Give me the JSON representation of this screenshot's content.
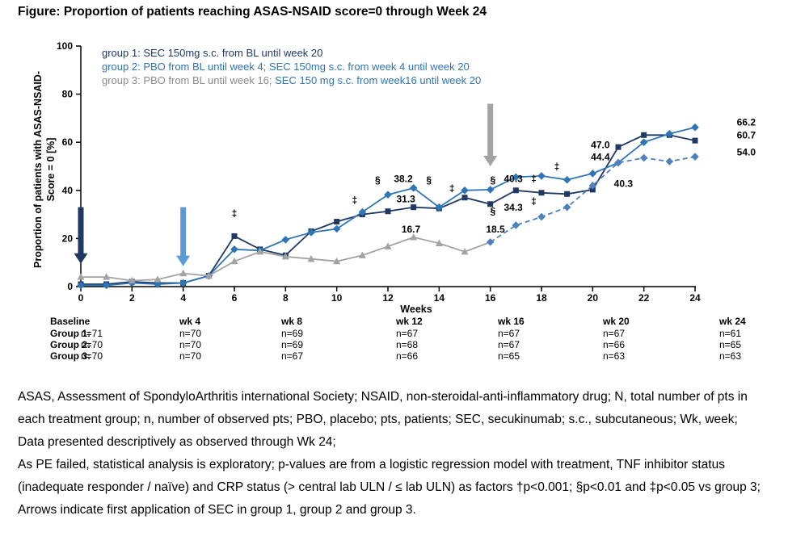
{
  "title": "Figure: Proportion of patients reaching ASAS-NSAID score=0 through Week 24",
  "palette": {
    "navy": "#1f3864",
    "blue": "#2e75b6",
    "lightblue": "#4f81bd",
    "arrowblue": "#5b9bd5",
    "gray": "#a3a3a3",
    "legendgray": "#8a8a8a",
    "sym": "#404040",
    "black": "#000000"
  },
  "chart_data": {
    "type": "line",
    "title": "Proportion of patients reaching ASAS-NSAID score=0 through Week 24",
    "xlabel": "Weeks",
    "ylabel": [
      "Proportion of patients with ASAS-NSAID-",
      "Score = 0 [%]"
    ],
    "xlim": [
      0,
      24
    ],
    "ylim": [
      0,
      100
    ],
    "x_ticks": [
      0,
      2,
      4,
      6,
      8,
      10,
      12,
      14,
      16,
      18,
      20,
      22,
      24
    ],
    "y_ticks": [
      0,
      20,
      40,
      60,
      80,
      100
    ],
    "grid": false,
    "weeks": [
      0,
      1,
      2,
      3,
      4,
      5,
      6,
      7,
      8,
      9,
      10,
      11,
      12,
      13,
      14,
      15,
      16,
      17,
      18,
      19,
      20,
      21,
      22,
      23,
      24
    ],
    "series": [
      {
        "name": "group-1-sec",
        "label": "group 1: SEC 150mg s.c. from BL until week 20",
        "color": "navy",
        "marker": "square",
        "dash": false,
        "values": [
          1,
          1,
          2,
          1.5,
          1.5,
          4.5,
          21,
          15.5,
          13,
          23,
          27,
          30,
          31.3,
          33,
          32.5,
          37,
          34.3,
          40,
          39,
          38.5,
          40.3,
          58,
          63,
          63,
          60.7
        ]
      },
      {
        "name": "group-2-pbo-sec",
        "label": "group 2: PBO from BL until week 4; SEC 150mg s.c. from week 4 until week 20",
        "color": "blue",
        "marker": "diamond",
        "dash": false,
        "values": [
          0.5,
          0.5,
          1.5,
          1,
          1.5,
          4.5,
          15.5,
          15,
          19.5,
          22.5,
          24,
          31,
          38.2,
          41,
          33,
          40,
          40.3,
          45.5,
          46,
          44.4,
          47,
          51.5,
          60,
          63.5,
          66.2
        ]
      },
      {
        "name": "group-3-pbo-phase",
        "label": "group 3: PBO from BL until week 16",
        "color": "gray",
        "marker": "triangle",
        "dash": false,
        "marker_to": 15,
        "values": [
          4,
          4,
          2.5,
          3,
          5.5,
          4.5,
          10.5,
          14.5,
          12.5,
          11.5,
          10.5,
          13,
          16.7,
          20.5,
          18,
          14.5,
          18.5,
          null,
          null,
          null,
          null,
          null,
          null,
          null,
          null
        ]
      },
      {
        "name": "group-3-sec-phase",
        "label": "group 3: SEC 150 mg s.c. from week16 until week 20",
        "color": "lightblue",
        "marker": "diamond",
        "dash": true,
        "marker_from": 16,
        "values": [
          null,
          null,
          null,
          null,
          null,
          null,
          null,
          null,
          null,
          null,
          null,
          null,
          null,
          null,
          null,
          null,
          18.5,
          25.5,
          29,
          33,
          42,
          51.5,
          53.5,
          52,
          54
        ]
      }
    ],
    "annotations": [
      {
        "week": 6.0,
        "pct": 29,
        "text": "‡",
        "color": "sym"
      },
      {
        "week": 10.7,
        "pct": 34.5,
        "text": "‡",
        "color": "sym"
      },
      {
        "week": 11.6,
        "pct": 43,
        "text": "§",
        "color": "sym"
      },
      {
        "week": 12.6,
        "pct": 43.5,
        "text": "38.2",
        "color": "blue"
      },
      {
        "week": 13.6,
        "pct": 43,
        "text": "§",
        "color": "sym"
      },
      {
        "week": 12.7,
        "pct": 35,
        "text": "31.3",
        "color": "navy"
      },
      {
        "week": 12.9,
        "pct": 22.5,
        "text": "16.7",
        "color": "gray"
      },
      {
        "week": 14.5,
        "pct": 39.5,
        "text": "‡",
        "color": "sym"
      },
      {
        "week": 16.1,
        "pct": 43,
        "text": "§",
        "color": "sym"
      },
      {
        "week": 16.9,
        "pct": 43.5,
        "text": "40.3",
        "color": "blue"
      },
      {
        "week": 17.7,
        "pct": 43.5,
        "text": "‡",
        "color": "sym"
      },
      {
        "week": 18.6,
        "pct": 48.5,
        "text": "‡",
        "color": "sym"
      },
      {
        "week": 16.1,
        "pct": 30,
        "text": "§",
        "color": "sym"
      },
      {
        "week": 16.9,
        "pct": 31.5,
        "text": "34.3",
        "color": "navy"
      },
      {
        "week": 17.7,
        "pct": 34,
        "text": "‡",
        "color": "sym"
      },
      {
        "week": 16.2,
        "pct": 22.5,
        "text": "18.5",
        "color": "lightblue"
      },
      {
        "week": 20.3,
        "pct": 57.5,
        "text": "47.0",
        "color": "blue"
      },
      {
        "week": 20.3,
        "pct": 52.5,
        "text": "44.4",
        "color": "blue"
      },
      {
        "week": 21.2,
        "pct": 41.5,
        "text": "40.3",
        "color": "navy"
      },
      {
        "week": 26.0,
        "pct": 67,
        "text": "66.2",
        "color": "blue"
      },
      {
        "week": 26.0,
        "pct": 61.5,
        "text": "60.7",
        "color": "navy"
      },
      {
        "week": 26.0,
        "pct": 54.5,
        "text": "54.0",
        "color": "lightblue"
      }
    ],
    "arrows": [
      {
        "week": 0,
        "from": 33,
        "to": 9.5,
        "color": "navy"
      },
      {
        "week": 4,
        "from": 33,
        "to": 8.5,
        "color": "arrowblue"
      },
      {
        "week": 16,
        "from": 76,
        "to": 50,
        "color": "gray"
      }
    ]
  },
  "legend": {
    "lines": [
      {
        "segments": [
          {
            "text": "group 1: SEC 150mg s.c. from BL until week 20",
            "color": "navy"
          }
        ]
      },
      {
        "segments": [
          {
            "text": "group 2: PBO from BL until week 4; SEC 150mg s.c. from week 4 until week 20",
            "color": "blue"
          }
        ]
      },
      {
        "segments": [
          {
            "text": "group 3: PBO from BL until week 16; ",
            "color": "legendgray"
          },
          {
            "text": "SEC 150 mg s.c. from week16 until week 20",
            "color": "blue"
          }
        ]
      }
    ]
  },
  "table": {
    "col_headers": [
      "Baseline",
      "wk 4",
      "wk 8",
      "wk 12",
      "wk 16",
      "wk 20",
      "wk 24"
    ],
    "rows": [
      {
        "label": "Group 1:",
        "color": "navy",
        "values": [
          "n=71",
          "n=70",
          "n=69",
          "n=67",
          "n=67",
          "n=67",
          "n=61"
        ],
        "value_colors": [
          "navy",
          "navy",
          "navy",
          "navy",
          "navy",
          "navy",
          "navy"
        ]
      },
      {
        "label": "Group 2:",
        "color": "blue",
        "values": [
          "n=70",
          "n=70",
          "n=69",
          "n=68",
          "n=67",
          "n=66",
          "n=65"
        ],
        "value_colors": [
          "blue",
          "blue",
          "blue",
          "blue",
          "blue",
          "blue",
          "blue"
        ]
      },
      {
        "label": "Group 3:",
        "color": "gray",
        "values": [
          "n=70",
          "n=70",
          "n=67",
          "n=66",
          "n=65",
          "n=63",
          "n=63"
        ],
        "value_colors": [
          "gray",
          "gray",
          "gray",
          "gray",
          "gray",
          "blue",
          "blue"
        ]
      }
    ]
  },
  "footnotes": [
    "ASAS, Assessment of SpondyloArthritis international Society;  NSAID, non-steroidal-anti-inflammatory drug; N, total number of pts in each treatment group; n, number of observed pts; PBO, placebo; pts, patients; SEC, secukinumab; s.c., subcutaneous; Wk, week;",
    "Data presented descriptively as observed through Wk 24;",
    "As PE failed, statistical analysis is exploratory; p-values are from a logistic regression model with treatment, TNF inhibitor status (inadequate responder / naïve) and CRP status (> central lab ULN / ≤ lab ULN) as factors †p<0.001; §p<0.01 and ‡p<0.05 vs group 3; Arrows indicate first application of SEC in group 1, group 2 and group 3."
  ]
}
